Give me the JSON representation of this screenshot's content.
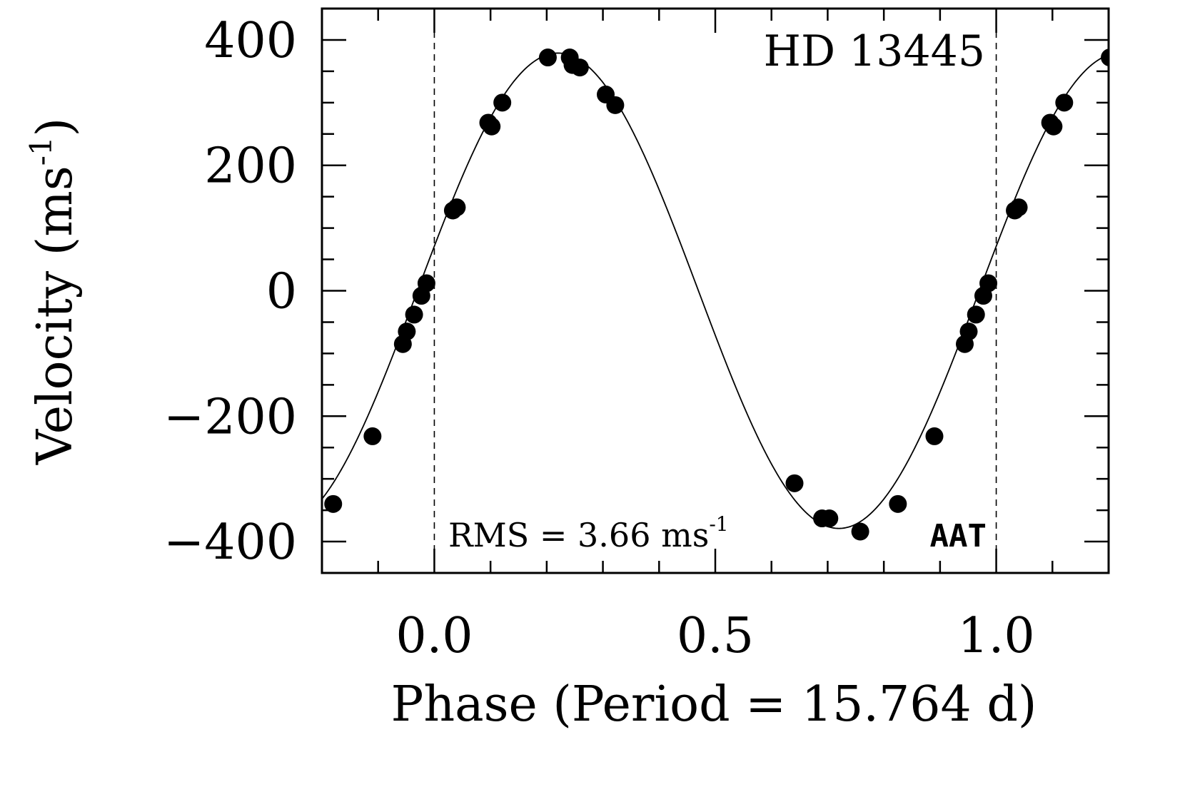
{
  "chart_data": {
    "type": "scatter",
    "title": "HD 13445",
    "xlabel": "Phase (Period = 15.764 d)",
    "ylabel_main": "Velocity (ms",
    "ylabel_sup": "-1",
    "ylabel_close": ")",
    "xlim": [
      -0.2,
      1.2
    ],
    "ylim": [
      -450,
      450
    ],
    "x_ticks": [
      0.0,
      0.5,
      1.0
    ],
    "x_tick_labels": [
      "0.0",
      "0.5",
      "1.0"
    ],
    "y_ticks": [
      -400,
      -200,
      0,
      200,
      400
    ],
    "y_tick_labels": [
      "−400",
      "−200",
      "0",
      "200",
      "400"
    ],
    "x_minor_step": 0.1,
    "y_minor_step": 50,
    "phase_markers": [
      0.0,
      1.0
    ],
    "annotations": {
      "rms_main": "RMS = 3.66 ms",
      "rms_sup": "-1",
      "instrument": "AAT"
    },
    "model_curve": {
      "semi_amplitude": 379,
      "offset": 0,
      "form": "K*sin(2*pi*(phase - 0.97)) approx",
      "style": "thin solid line"
    },
    "series": [
      {
        "marker": "filled-circle",
        "x": [
          -0.18,
          -0.11,
          -0.056,
          -0.049,
          -0.036,
          -0.023,
          -0.014,
          0.033,
          0.04,
          0.096,
          0.102,
          0.121,
          0.202,
          0.241,
          0.246,
          0.259,
          0.305,
          0.322,
          0.641,
          0.69,
          0.703,
          0.758,
          0.825,
          0.89,
          0.944,
          0.951,
          0.964,
          0.977,
          0.986,
          1.033,
          1.04,
          1.096,
          1.102,
          1.121,
          1.202
        ],
        "y": [
          -340,
          -232,
          -85,
          -65,
          -38,
          -8,
          12,
          128,
          133,
          268,
          262,
          300,
          372,
          372,
          360,
          356,
          313,
          296,
          -307,
          -363,
          -363,
          -384,
          -340,
          -232,
          -85,
          -65,
          -38,
          -8,
          12,
          128,
          133,
          268,
          262,
          300,
          372
        ]
      }
    ]
  }
}
